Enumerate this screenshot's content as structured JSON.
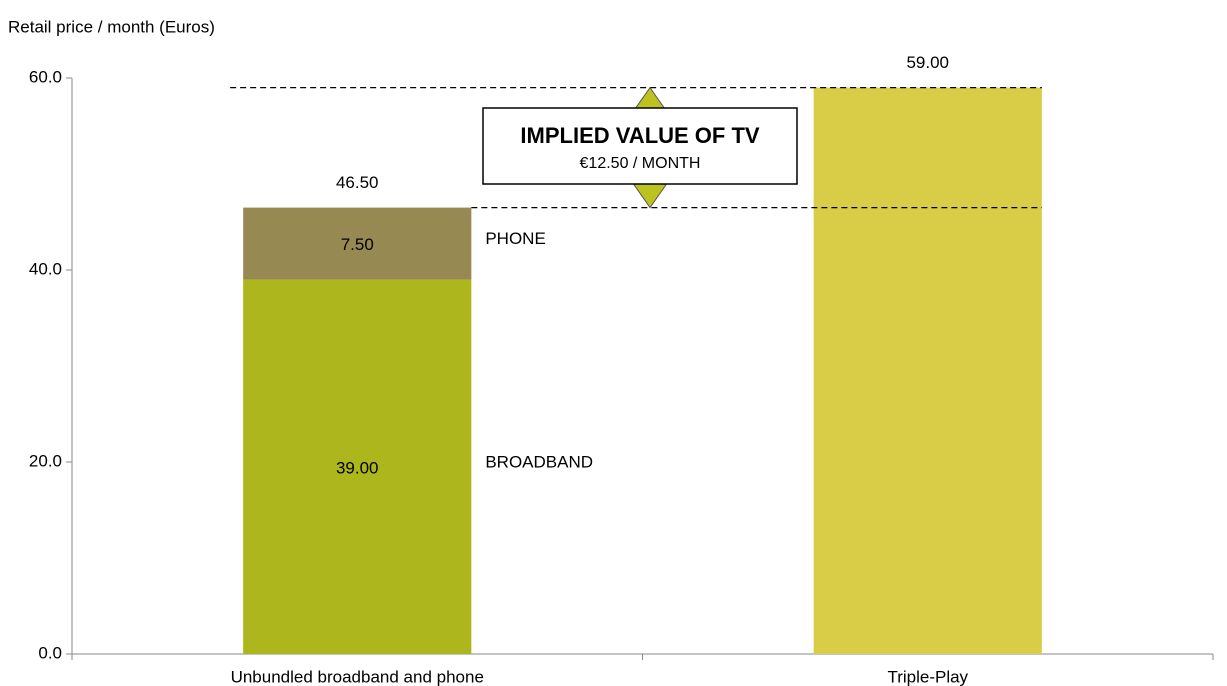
{
  "chart_data": {
    "type": "stacked_bar",
    "y_axis_label": "Retail price / month (Euros)",
    "categories": [
      "Unbundled broadband and phone",
      "Triple-Play"
    ],
    "series": [
      {
        "name": "BROADBAND",
        "color": "#adb71d",
        "values": [
          39,
          null
        ],
        "value_labels": [
          "39.00",
          null
        ]
      },
      {
        "name": "PHONE",
        "color": "#968a52",
        "values": [
          7.5,
          null
        ],
        "value_labels": [
          "7.50",
          null
        ]
      },
      {
        "color": "#d9cc47",
        "values": [
          null,
          59
        ]
      }
    ],
    "totals": [
      46.5,
      59
    ],
    "total_labels": [
      "46.50",
      "59.00"
    ],
    "annotation": {
      "title": "IMPLIED VALUE OF TV",
      "text": "€12.50 / MONTH",
      "value": 12.5,
      "color": "#bcc31f"
    },
    "ylim": [
      0,
      60
    ],
    "yticks": [
      {
        "value": 0,
        "label": "0.0"
      },
      {
        "value": 20,
        "label": "20.0"
      },
      {
        "value": 40,
        "label": "40.0"
      },
      {
        "value": 60,
        "label": "60.0"
      }
    ]
  }
}
